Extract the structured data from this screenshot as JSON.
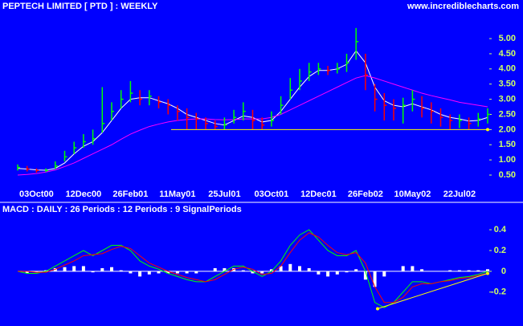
{
  "header": {
    "title": "PEPTECH LIMITED  [ PTD ] : WEEKLY",
    "source": "www.incrediblecharts.com"
  },
  "chart_data": [
    {
      "type": "hlc",
      "categories": [
        null,
        null,
        "03Oct00",
        null,
        null,
        null,
        null,
        "12Dec00",
        null,
        null,
        null,
        null,
        "26Feb01",
        null,
        null,
        null,
        null,
        "11May01",
        null,
        null,
        null,
        null,
        "25Jul01",
        null,
        null,
        null,
        null,
        "03Oct01",
        null,
        null,
        null,
        null,
        "12Dec01",
        null,
        null,
        null,
        null,
        "26Feb02",
        null,
        null,
        null,
        null,
        "10May02",
        null,
        null,
        null,
        null,
        "22Jul02",
        null,
        null,
        null
      ],
      "high": [
        0.85,
        0.8,
        0.72,
        0.72,
        0.95,
        1.3,
        1.6,
        1.85,
        2.0,
        3.4,
        2.9,
        3.3,
        3.6,
        3.3,
        3.3,
        3.1,
        3.0,
        2.8,
        2.7,
        2.55,
        2.4,
        2.3,
        2.4,
        2.65,
        2.9,
        2.65,
        2.4,
        2.6,
        3.1,
        3.7,
        4.0,
        4.2,
        4.2,
        4.1,
        4.2,
        4.5,
        5.35,
        4.5,
        3.5,
        3.2,
        3.0,
        3.05,
        3.3,
        3.1,
        2.9,
        2.7,
        2.5,
        2.5,
        2.4,
        2.55,
        2.7
      ],
      "low": [
        0.65,
        0.62,
        0.58,
        0.6,
        0.7,
        0.95,
        1.2,
        1.4,
        1.5,
        1.9,
        2.3,
        2.7,
        2.9,
        2.8,
        2.8,
        2.7,
        2.5,
        2.3,
        2.0,
        2.0,
        2.0,
        2.0,
        2.0,
        2.2,
        2.3,
        2.0,
        2.0,
        2.1,
        2.5,
        3.0,
        3.3,
        3.6,
        3.8,
        3.8,
        3.85,
        3.9,
        4.3,
        3.3,
        2.6,
        2.3,
        2.3,
        2.2,
        2.6,
        2.4,
        2.2,
        2.1,
        2.0,
        2.05,
        2.0,
        2.1,
        2.2
      ],
      "close": [
        0.75,
        0.7,
        0.65,
        0.65,
        0.8,
        1.1,
        1.4,
        1.6,
        1.7,
        2.2,
        2.6,
        3.0,
        3.2,
        3.0,
        3.1,
        2.9,
        2.8,
        2.6,
        2.4,
        2.35,
        2.2,
        2.1,
        2.15,
        2.4,
        2.6,
        2.3,
        2.15,
        2.3,
        2.8,
        3.3,
        3.6,
        3.9,
        4.0,
        3.95,
        4.0,
        4.2,
        4.9,
        3.8,
        3.0,
        2.8,
        2.7,
        2.8,
        3.0,
        2.7,
        2.6,
        2.4,
        2.3,
        2.3,
        2.2,
        2.35,
        2.5
      ],
      "up_color": "#00ff00",
      "down_color": "#ff0000",
      "series": [
        {
          "color": "#ffffff",
          "values": [
            0.72,
            0.7,
            0.67,
            0.66,
            0.72,
            0.9,
            1.2,
            1.45,
            1.6,
            1.9,
            2.3,
            2.7,
            3.0,
            3.05,
            3.05,
            2.95,
            2.85,
            2.7,
            2.5,
            2.4,
            2.3,
            2.2,
            2.15,
            2.3,
            2.45,
            2.4,
            2.25,
            2.3,
            2.6,
            3.0,
            3.4,
            3.75,
            3.95,
            3.95,
            4.0,
            4.15,
            4.6,
            4.2,
            3.4,
            2.95,
            2.8,
            2.75,
            2.85,
            2.75,
            2.65,
            2.5,
            2.4,
            2.35,
            2.28,
            2.3,
            2.4
          ]
        },
        {
          "color": "#ff00ff",
          "values": [
            0.5,
            0.52,
            0.55,
            0.6,
            0.67,
            0.78,
            0.9,
            1.05,
            1.2,
            1.35,
            1.5,
            1.68,
            1.85,
            1.98,
            2.1,
            2.18,
            2.25,
            2.3,
            2.33,
            2.35,
            2.35,
            2.33,
            2.32,
            2.33,
            2.35,
            2.35,
            2.35,
            2.4,
            2.5,
            2.65,
            2.8,
            2.95,
            3.1,
            3.25,
            3.4,
            3.55,
            3.7,
            3.78,
            3.7,
            3.6,
            3.5,
            3.4,
            3.3,
            3.2,
            3.12,
            3.05,
            2.98,
            2.9,
            2.85,
            2.8,
            2.75
          ]
        }
      ],
      "support": 2.0,
      "support_color": "#ffff00",
      "ylim": [
        0.13,
        6.14
      ],
      "yticks": [
        {
          "value": 0.5,
          "label": "0.50"
        },
        {
          "value": 1,
          "label": "1.00"
        },
        {
          "value": 1.5,
          "label": "1.50"
        },
        {
          "value": 2,
          "label": "2.00"
        },
        {
          "value": 2.5,
          "label": "2.50"
        },
        {
          "value": 3,
          "label": "3.00"
        },
        {
          "value": 3.5,
          "label": "3.50"
        },
        {
          "value": 4,
          "label": "4.00"
        },
        {
          "value": 4.5,
          "label": "4.50"
        },
        {
          "value": 5,
          "label": "5.00"
        }
      ]
    },
    {
      "type": "macd",
      "title": "MACD : DAILY : 26 Periods : 12 Periods : 9 SignalPeriods",
      "histogram": {
        "color": "#ffffff",
        "values": [
          0,
          -0.02,
          -0.01,
          0.01,
          0.03,
          0.04,
          0.05,
          0.05,
          -0.01,
          0.03,
          0.04,
          0.01,
          -0.02,
          -0.05,
          -0.03,
          -0.02,
          -0.02,
          -0.02,
          -0.02,
          -0.02,
          0,
          0.03,
          0.03,
          0.03,
          0.01,
          -0.02,
          -0.02,
          0.02,
          0.05,
          0.07,
          0.05,
          0.03,
          -0.03,
          -0.05,
          -0.03,
          -0.01,
          0.02,
          -0.08,
          -0.15,
          -0.05,
          0,
          0.05,
          0.05,
          0.02,
          0,
          0,
          0.01,
          0.01,
          0.01,
          0.01,
          0.02
        ]
      },
      "series": [
        {
          "color": "#00ff00",
          "values": [
            0,
            -0.02,
            -0.02,
            0.0,
            0.05,
            0.1,
            0.15,
            0.2,
            0.15,
            0.2,
            0.25,
            0.25,
            0.2,
            0.1,
            0.05,
            0.02,
            -0.02,
            -0.05,
            -0.08,
            -0.1,
            -0.1,
            -0.05,
            0.0,
            0.05,
            0.05,
            0.0,
            -0.05,
            0.0,
            0.1,
            0.25,
            0.35,
            0.4,
            0.3,
            0.2,
            0.15,
            0.15,
            0.2,
            0.0,
            -0.3,
            -0.35,
            -0.3,
            -0.2,
            -0.1,
            -0.1,
            -0.12,
            -0.1,
            -0.08,
            -0.06,
            -0.05,
            -0.03,
            0.0
          ]
        },
        {
          "color": "#ff0000",
          "values": [
            0,
            0,
            -0.01,
            -0.01,
            0.02,
            0.06,
            0.1,
            0.15,
            0.16,
            0.17,
            0.21,
            0.24,
            0.22,
            0.15,
            0.08,
            0.04,
            0.0,
            -0.03,
            -0.06,
            -0.08,
            -0.1,
            -0.08,
            -0.03,
            0.02,
            0.04,
            0.02,
            -0.03,
            -0.02,
            0.05,
            0.18,
            0.3,
            0.37,
            0.33,
            0.25,
            0.18,
            0.16,
            0.18,
            0.08,
            -0.15,
            -0.3,
            -0.3,
            -0.25,
            -0.15,
            -0.12,
            -0.12,
            -0.1,
            -0.09,
            -0.07,
            -0.06,
            -0.04,
            -0.02
          ]
        }
      ],
      "trendline": [
        -0.36,
        -0.02
      ],
      "trendline_color": "#ffff00",
      "ylim": [
        -0.48,
        0.54
      ],
      "yticks": [
        -0.2,
        0,
        0.2,
        0.4
      ]
    }
  ]
}
